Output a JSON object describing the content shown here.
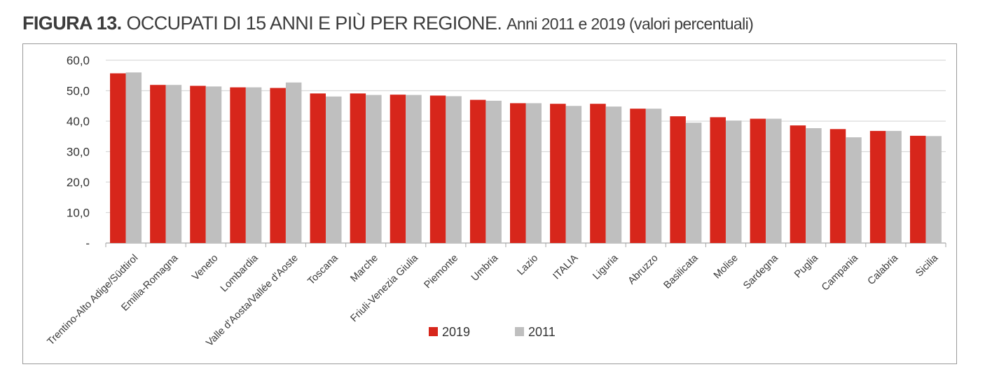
{
  "figure": {
    "label": "FIGURA 13.",
    "title": "OCCUPATI DI 15 ANNI E PIÙ PER REGIONE.",
    "subtitle": "Anni 2011 e 2019 (valori percentuali)"
  },
  "chart_data": {
    "type": "bar",
    "title": "OCCUPATI DI 15 ANNI E PIÙ PER REGIONE. Anni 2011 e 2019 (valori percentuali)",
    "xlabel": "",
    "ylabel": "",
    "ylim": [
      0,
      60
    ],
    "yticks": [
      "-",
      "10,0",
      "20,0",
      "30,0",
      "40,0",
      "50,0",
      "60,0"
    ],
    "grid": true,
    "legend_position": "bottom-center",
    "categories": [
      "Trentino-Alto Adige/Südtirol",
      "Emilia-Romagna",
      "Veneto",
      "Lombardia",
      "Valle d'Aosta/Vallée d'Aoste",
      "Toscana",
      "Marche",
      "Friuli-Venezia Giulia",
      "Piemonte",
      "Umbria",
      "Lazio",
      "ITALIA",
      "Liguria",
      "Abruzzo",
      "Basilicata",
      "Molise",
      "Sardegna",
      "Puglia",
      "Campania",
      "Calabria",
      "Sicilia"
    ],
    "series": [
      {
        "name": "2019",
        "color": "#d7261b",
        "values": [
          55.7,
          51.9,
          51.6,
          51.1,
          50.9,
          49.1,
          49.1,
          48.7,
          48.4,
          47.0,
          45.9,
          45.7,
          45.7,
          44.1,
          41.6,
          41.3,
          40.8,
          38.6,
          37.4,
          36.8,
          35.2
        ]
      },
      {
        "name": "2011",
        "color": "#bfbfbf",
        "values": [
          56.0,
          51.9,
          51.4,
          51.1,
          52.7,
          48.1,
          48.6,
          48.6,
          48.2,
          46.7,
          45.9,
          45.0,
          44.8,
          44.1,
          39.5,
          40.2,
          40.8,
          37.7,
          34.7,
          36.8,
          35.1
        ]
      }
    ]
  }
}
